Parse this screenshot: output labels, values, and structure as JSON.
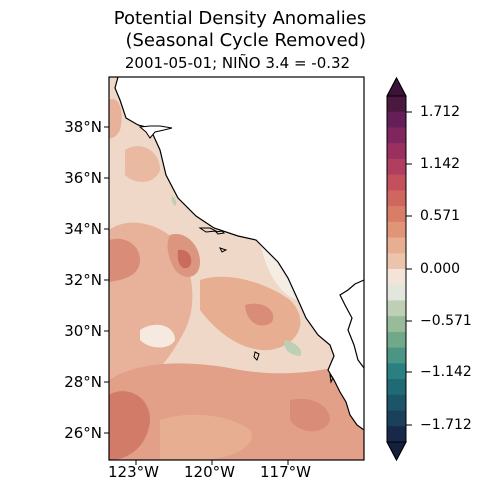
{
  "title": "Potential Density Anomalies\n  (Seasonal Cycle Removed)",
  "subtitle": "2001-05-01; NIÑO 3.4 = -0.32",
  "lat_ticks": [
    "38°N",
    "36°N",
    "34°N",
    "32°N",
    "30°N",
    "28°N",
    "26°N"
  ],
  "lon_ticks": [
    "123°W",
    "120°W",
    "117°W"
  ],
  "colorbar": {
    "tick_labels": [
      "1.712",
      "1.142",
      "0.571",
      "0.000",
      "−0.571",
      "−1.142",
      "−1.712"
    ],
    "colors_top_to_bottom": [
      "#4b1840",
      "#641e58",
      "#80265f",
      "#9a3060",
      "#b03e5f",
      "#c2515d",
      "#cf665f",
      "#d87e68",
      "#e09676",
      "#e7ae92",
      "#ecc4ae",
      "#f3e3d8",
      "#e2e6dc",
      "#bdd0b6",
      "#98bb9a",
      "#6fa98a",
      "#4b9585",
      "#2a8080",
      "#1f6a75",
      "#1d5568",
      "#1b405a",
      "#18284a"
    ],
    "extend_top_color": "#3d1238",
    "extend_bottom_color": "#15203c"
  }
}
